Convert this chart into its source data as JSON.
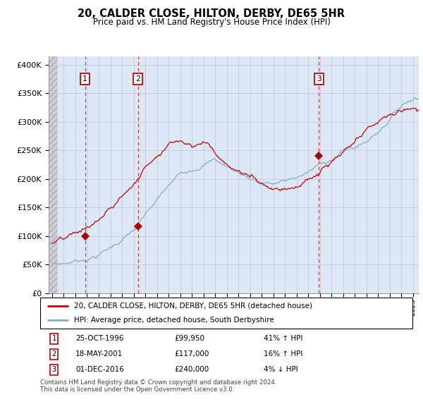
{
  "title": "20, CALDER CLOSE, HILTON, DERBY, DE65 5HR",
  "subtitle": "Price paid vs. HM Land Registry's House Price Index (HPI)",
  "ylabel_ticks": [
    "£0",
    "£50K",
    "£100K",
    "£150K",
    "£200K",
    "£250K",
    "£300K",
    "£350K",
    "£400K"
  ],
  "ytick_vals": [
    0,
    50000,
    100000,
    150000,
    200000,
    250000,
    300000,
    350000,
    400000
  ],
  "ylim": [
    0,
    415000
  ],
  "xlim_start": 1993.7,
  "xlim_end": 2025.5,
  "sale_dates": [
    1996.82,
    2001.38,
    2016.92
  ],
  "sale_prices": [
    99950,
    117000,
    240000
  ],
  "sale_labels": [
    "1",
    "2",
    "3"
  ],
  "legend_line1": "20, CALDER CLOSE, HILTON, DERBY, DE65 5HR (detached house)",
  "legend_line2": "HPI: Average price, detached house, South Derbyshire",
  "table_rows": [
    [
      "1",
      "25-OCT-1996",
      "£99,950",
      "41% ↑ HPI"
    ],
    [
      "2",
      "18-MAY-2001",
      "£117,000",
      "16% ↑ HPI"
    ],
    [
      "3",
      "01-DEC-2016",
      "£240,000",
      "4% ↓ HPI"
    ]
  ],
  "footnote": "Contains HM Land Registry data © Crown copyright and database right 2024.\nThis data is licensed under the Open Government Licence v3.0.",
  "line_color_red": "#cc0000",
  "line_color_blue": "#88aacc",
  "vline_color": "#dd2222",
  "grid_color": "#bbbbcc",
  "plot_bg": "#dce8f5",
  "hatch_bg": "#d0d0d8"
}
